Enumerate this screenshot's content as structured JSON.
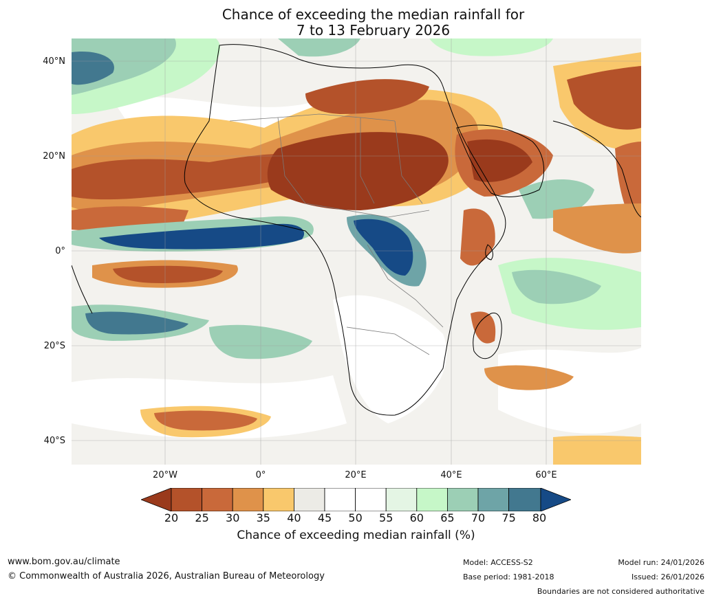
{
  "title": {
    "line1": "Chance of exceeding the median rainfall for",
    "line2": "7 to 13 February 2026"
  },
  "map": {
    "latitude_labels": [
      "40°N",
      "20°N",
      "0°",
      "20°S",
      "40°S"
    ],
    "longitude_labels": [
      "20°W",
      "0°",
      "20°E",
      "40°E",
      "60°E"
    ]
  },
  "colorbar": {
    "ticks": [
      "20",
      "25",
      "30",
      "35",
      "40",
      "45",
      "50",
      "55",
      "60",
      "65",
      "70",
      "75",
      "80"
    ],
    "colors": [
      "#9a3a1c",
      "#b4522a",
      "#c9693a",
      "#df924a",
      "#f9c86c",
      "#ecebe6",
      "#ffffff",
      "#ffffff",
      "#e4f5e4",
      "#c6f7c8",
      "#9ccfb5",
      "#6ea4a7",
      "#42788f",
      "#164a86"
    ],
    "title": "Chance of exceeding median rainfall (%)"
  },
  "footer": {
    "website": "www.bom.gov.au/climate",
    "copyright": "© Commonwealth of Australia 2026, Australian Bureau of Meteorology",
    "model": "Model: ACCESS-S2",
    "base_period": "Base period: 1981-2018",
    "model_run": "Model run: 24/01/2026",
    "issued": "Issued: 26/01/2026",
    "boundaries_note": "Boundaries are not considered authoritative"
  }
}
